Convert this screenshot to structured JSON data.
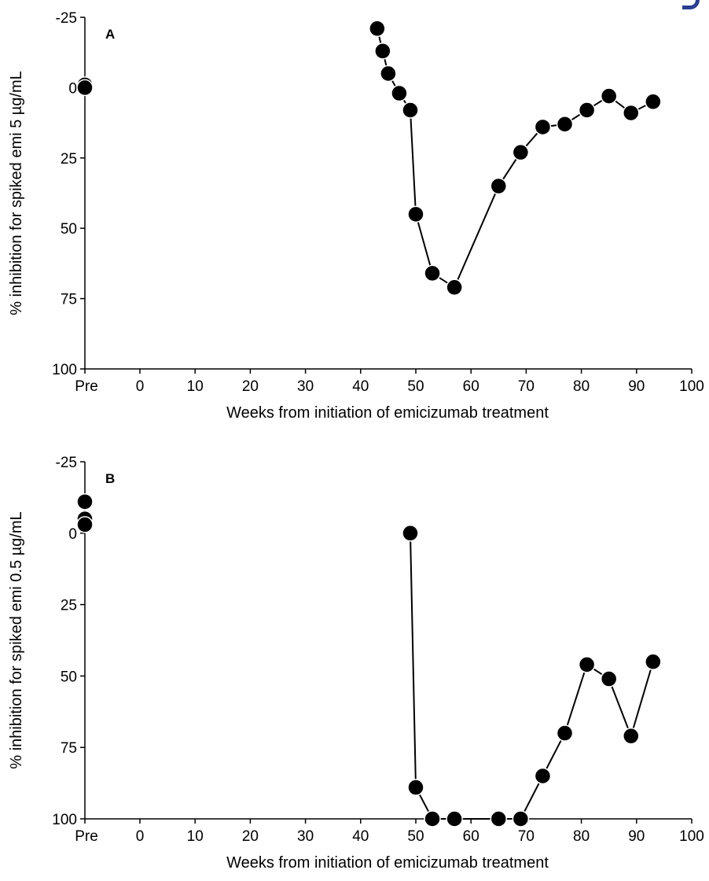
{
  "chart_data": [
    {
      "type": "scatter",
      "panel_label": "A",
      "xlabel": "Weeks from initiation of emicizumab treatment",
      "ylabel": "% inhibition for spiked emi 5 µg/mL",
      "x_categories": [
        "Pre"
      ],
      "x_ticks": [
        0,
        10,
        20,
        30,
        40,
        50,
        60,
        70,
        80,
        90,
        100
      ],
      "x_tick_labels": [
        "Pre",
        "0",
        "10",
        "20",
        "30",
        "40",
        "50",
        "60",
        "70",
        "80",
        "90",
        "100"
      ],
      "xlim": [
        0,
        100
      ],
      "y_ticks": [
        -25,
        0,
        25,
        50,
        75,
        100
      ],
      "ylim": [
        -25,
        100
      ],
      "y_inverted": true,
      "grid": false,
      "pre_points": [
        -1,
        0
      ],
      "series": [
        {
          "x": [
            43,
            44,
            45,
            47,
            49,
            50,
            53,
            57,
            65,
            69,
            73,
            77,
            81,
            85,
            89,
            93
          ],
          "y": [
            -21,
            -13,
            -5,
            2,
            8,
            45,
            66,
            71,
            35,
            23,
            14,
            13,
            8,
            3,
            9,
            5
          ]
        }
      ]
    },
    {
      "type": "scatter",
      "panel_label": "B",
      "xlabel": "Weeks from initiation of emicizumab treatment",
      "ylabel": "% inhibition for spiked emi 0.5 µg/mL",
      "x_categories": [
        "Pre"
      ],
      "x_ticks": [
        0,
        10,
        20,
        30,
        40,
        50,
        60,
        70,
        80,
        90,
        100
      ],
      "x_tick_labels": [
        "Pre",
        "0",
        "10",
        "20",
        "30",
        "40",
        "50",
        "60",
        "70",
        "80",
        "90",
        "100"
      ],
      "xlim": [
        0,
        100
      ],
      "y_ticks": [
        -25,
        0,
        25,
        50,
        75,
        100
      ],
      "ylim": [
        -25,
        100
      ],
      "y_inverted": true,
      "grid": false,
      "pre_points": [
        -11,
        -5,
        -3
      ],
      "series": [
        {
          "x": [
            49,
            50,
            53,
            57,
            65,
            69,
            73,
            77,
            81,
            85,
            89,
            93
          ],
          "y": [
            0,
            89,
            100,
            100,
            100,
            100,
            85,
            70,
            46,
            51,
            71,
            45
          ]
        }
      ]
    }
  ]
}
